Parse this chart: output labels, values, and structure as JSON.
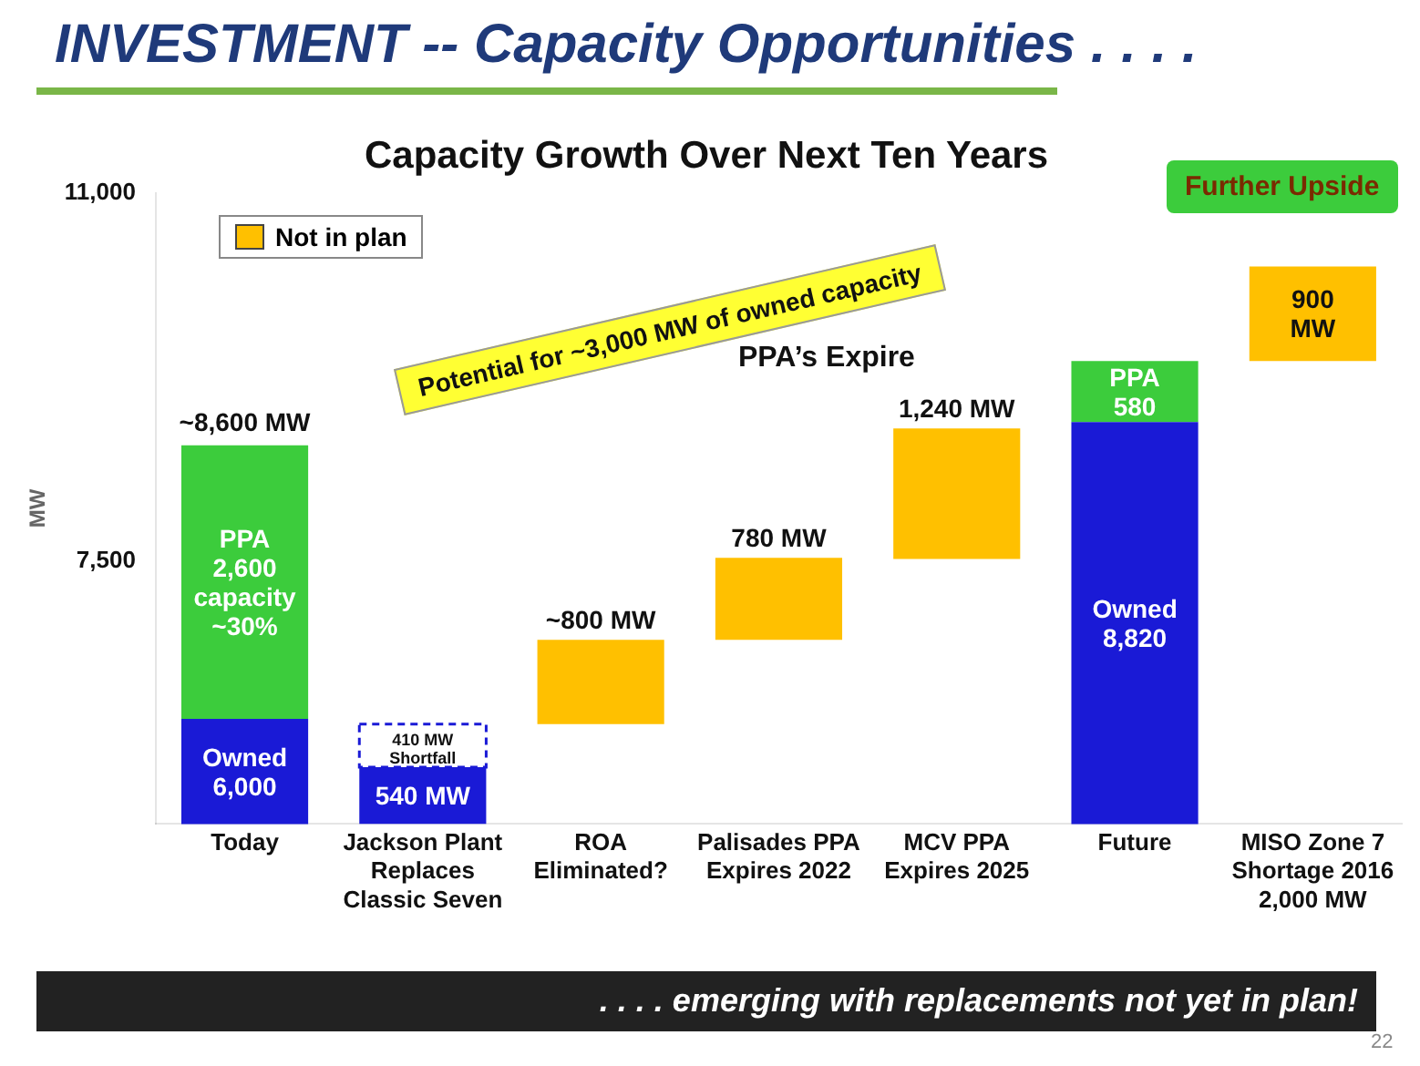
{
  "chart_data": {
    "type": "bar",
    "title": "INVESTMENT -- Capacity Opportunities . . . .",
    "subtitle": "Capacity Growth Over Next Ten Years",
    "ylabel": "MW",
    "categories": [
      "Today",
      "Jackson Plant Replaces Classic Seven",
      "ROA Eliminated?",
      "Palisades PPA Expires 2022",
      "MCV PPA Expires 2025",
      "Future",
      "MISO Zone 7 Shortage 2016 2,000 MW"
    ],
    "series": [
      {
        "color": "#1a1ad6",
        "values": [
          6000,
          540,
          null,
          null,
          null,
          8820,
          null
        ],
        "base": [
          null,
          5000,
          null,
          null,
          null,
          null,
          null
        ],
        "value_labels": [
          "Owned\n6,000",
          "540 MW",
          null,
          null,
          null,
          "Owned\n8,820",
          null
        ]
      },
      {
        "color": "#3ccc3c",
        "values": [
          2600,
          null,
          null,
          null,
          null,
          580,
          null
        ],
        "base": [
          6000,
          null,
          null,
          null,
          null,
          8820,
          null
        ],
        "value_labels": [
          "PPA\n2,600\ncapacity\n~30%",
          null,
          null,
          null,
          null,
          "PPA\n580",
          null
        ]
      },
      {
        "color": "#1a1ad6",
        "line_style": "dashed",
        "values": [
          null,
          410,
          null,
          null,
          null,
          null,
          null
        ],
        "base": [
          null,
          5540,
          null,
          null,
          null,
          null,
          null
        ],
        "value_labels": [
          null,
          "410 MW\nShortfall",
          null,
          null,
          null,
          null,
          null
        ]
      },
      {
        "name": "Not in plan",
        "color": "#ffc000",
        "values": [
          null,
          null,
          800,
          780,
          1240,
          null,
          900
        ],
        "base": [
          null,
          null,
          5950,
          6750,
          7520,
          null,
          9400
        ],
        "value_labels": [
          null,
          null,
          "~800 MW",
          "780 MW",
          "1,240 MW",
          null,
          "900\nMW"
        ]
      }
    ],
    "totals": [
      "~8,600 MW",
      null,
      null,
      null,
      null,
      null,
      null
    ],
    "ylim": [
      5000,
      11000
    ],
    "yticks": [
      {
        "value": 7500,
        "label": "7,500"
      },
      {
        "value": 11000,
        "label": "11,000"
      }
    ],
    "grid": false,
    "legend": "top left",
    "annotations": [
      "Potential for ~3,000 MW of owned capacity",
      "PPA’s Expire",
      "Further Upside",
      ". . . . emerging with replacements not yet in plan!",
      "22"
    ]
  }
}
